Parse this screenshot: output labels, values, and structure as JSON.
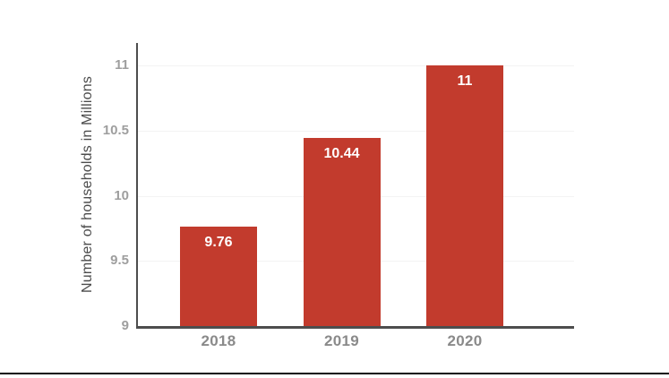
{
  "page": {
    "background": "#ffffff",
    "divider_color": "#0a0a0a"
  },
  "chart_data": {
    "type": "bar",
    "title": "",
    "xlabel": "",
    "ylabel": "Number of households in Millions",
    "categories": [
      "2018",
      "2019",
      "2020"
    ],
    "values": [
      9.76,
      10.44,
      11
    ],
    "data_labels": [
      "9.76",
      "10.44",
      "11"
    ],
    "ylim": [
      9,
      11
    ],
    "yticks": [
      9,
      9.5,
      10,
      10.5,
      11
    ],
    "ytick_labels": [
      "9",
      "9.5",
      "10",
      "10.5",
      "11"
    ],
    "legend": "none",
    "grid": "faint-horizontal",
    "colors": {
      "bar": "#c23b2d",
      "axis_line": "#4d4d4d",
      "tick_label": "#9e9e9e",
      "category_label": "#8a8a8a",
      "axis_title": "#4c4c4c",
      "data_label": "#ffffff",
      "gridline": "#f3f3f3"
    }
  }
}
